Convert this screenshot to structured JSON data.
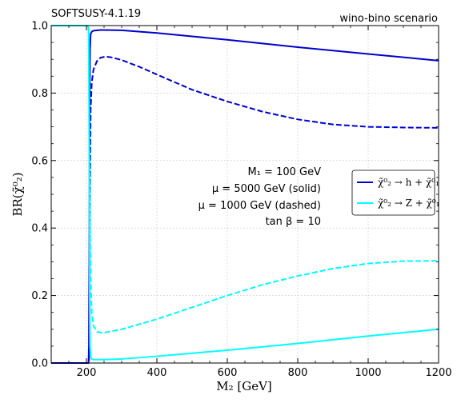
{
  "header": {
    "left": "SOFTSUSY-4.1.19",
    "right": "wino-bino scenario"
  },
  "chart_data": {
    "type": "line",
    "xlabel": "M₂ [GeV]",
    "ylabel": "BR(χ̃⁰₂)",
    "xlim": [
      100,
      1200
    ],
    "ylim": [
      0.0,
      1.0
    ],
    "xticks": [
      "200",
      "400",
      "600",
      "800",
      "1000",
      "1200"
    ],
    "yticks": [
      "0.0",
      "0.2",
      "0.4",
      "0.6",
      "0.8",
      "1.0"
    ],
    "grid": true,
    "legend_position": "center-right",
    "legend": [
      {
        "label": "χ̃⁰₂ → h + χ̃⁰₁",
        "color": "#0000cd"
      },
      {
        "label": "χ̃⁰₂ → Z + χ̃⁰₁",
        "color": "#00ffff"
      }
    ],
    "annotations": [
      "M₁ = 100 GeV",
      "μ = 5000 GeV (solid)",
      "μ = 1000 GeV (dashed)",
      "tan β = 10"
    ],
    "series": [
      {
        "color": "#0000cd",
        "dash": "solid",
        "x": [
          100,
          206,
          207,
          208,
          209,
          210,
          212,
          215,
          220,
          240,
          300,
          400,
          500,
          600,
          700,
          800,
          900,
          1000,
          1100,
          1200
        ],
        "y": [
          0.0,
          0.0,
          0.05,
          0.3,
          0.7,
          0.93,
          0.975,
          0.982,
          0.985,
          0.987,
          0.986,
          0.978,
          0.968,
          0.958,
          0.947,
          0.936,
          0.926,
          0.916,
          0.906,
          0.896
        ]
      },
      {
        "color": "#0000cd",
        "dash": "dashed",
        "x": [
          100,
          207,
          208,
          209,
          210,
          212,
          215,
          220,
          230,
          240,
          255,
          270,
          300,
          350,
          400,
          500,
          600,
          700,
          800,
          900,
          1000,
          1100,
          1200
        ],
        "y": [
          0.0,
          0.0,
          0.05,
          0.2,
          0.5,
          0.75,
          0.83,
          0.87,
          0.895,
          0.905,
          0.908,
          0.906,
          0.898,
          0.878,
          0.855,
          0.81,
          0.775,
          0.745,
          0.722,
          0.707,
          0.7,
          0.698,
          0.697
        ]
      },
      {
        "color": "#00ffff",
        "dash": "solid",
        "x": [
          100,
          200,
          204,
          206,
          207,
          208,
          209,
          210,
          212,
          215,
          220,
          240,
          300,
          400,
          500,
          600,
          700,
          800,
          900,
          1000,
          1100,
          1200
        ],
        "y": [
          1.0,
          1.0,
          1.0,
          0.99,
          0.9,
          0.6,
          0.2,
          0.05,
          0.02,
          0.012,
          0.01,
          0.01,
          0.012,
          0.02,
          0.029,
          0.038,
          0.048,
          0.058,
          0.069,
          0.08,
          0.09,
          0.1
        ]
      },
      {
        "color": "#00ffff",
        "dash": "dashed",
        "x": [
          100,
          200,
          205,
          206,
          207,
          208,
          209,
          210,
          212,
          215,
          220,
          230,
          240,
          250,
          260,
          300,
          400,
          500,
          600,
          700,
          800,
          900,
          1000,
          1100,
          1200
        ],
        "y": [
          1.0,
          1.0,
          1.0,
          0.99,
          0.9,
          0.75,
          0.55,
          0.4,
          0.25,
          0.15,
          0.11,
          0.093,
          0.09,
          0.09,
          0.092,
          0.1,
          0.13,
          0.165,
          0.2,
          0.232,
          0.258,
          0.28,
          0.295,
          0.302,
          0.303
        ]
      }
    ]
  }
}
